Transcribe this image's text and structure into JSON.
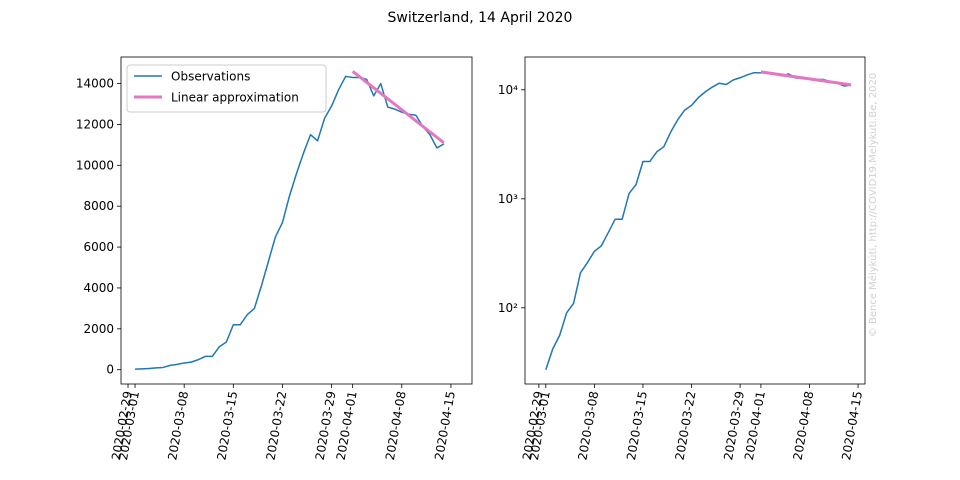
{
  "title": "Switzerland, 14 April 2020",
  "watermark": "© Bence Mélykúti, http://COVID19.Melykuti.Be, 2020",
  "chart_data": [
    {
      "type": "line",
      "log": false,
      "legend": "upper left",
      "x": [
        "2020-03-01",
        "2020-03-02",
        "2020-03-03",
        "2020-03-04",
        "2020-03-05",
        "2020-03-06",
        "2020-03-07",
        "2020-03-08",
        "2020-03-09",
        "2020-03-10",
        "2020-03-11",
        "2020-03-12",
        "2020-03-13",
        "2020-03-14",
        "2020-03-15",
        "2020-03-16",
        "2020-03-17",
        "2020-03-18",
        "2020-03-19",
        "2020-03-20",
        "2020-03-21",
        "2020-03-22",
        "2020-03-23",
        "2020-03-24",
        "2020-03-25",
        "2020-03-26",
        "2020-03-27",
        "2020-03-28",
        "2020-03-29",
        "2020-03-30",
        "2020-03-31",
        "2020-04-01",
        "2020-04-02",
        "2020-04-03",
        "2020-04-04",
        "2020-04-05",
        "2020-04-06",
        "2020-04-07",
        "2020-04-08",
        "2020-04-09",
        "2020-04-10",
        "2020-04-11",
        "2020-04-12",
        "2020-04-13",
        "2020-04-14"
      ],
      "series": [
        {
          "name": "Observations",
          "color": "#1f77b4",
          "values": [
            27,
            42,
            56,
            90,
            110,
            210,
            260,
            330,
            370,
            490,
            650,
            650,
            1120,
            1350,
            2200,
            2200,
            2700,
            3000,
            4100,
            5300,
            6500,
            7200,
            8500,
            9600,
            10600,
            11500,
            11200,
            12300,
            12900,
            13700,
            14350,
            14300,
            14300,
            14200,
            13400,
            14000,
            12850,
            12750,
            12600,
            12500,
            12450,
            11900,
            11500,
            10850,
            11050
          ]
        },
        {
          "name": "Linear approximation",
          "color": "#e377c2",
          "x": [
            "2020-04-01",
            "2020-04-14"
          ],
          "values": [
            14600,
            11100
          ]
        }
      ],
      "xlim": [
        "2020-02-28",
        "2020-04-18"
      ],
      "xticks": [
        "2020-02-29",
        "2020-03-01",
        "2020-03-08",
        "2020-03-15",
        "2020-03-22",
        "2020-03-29",
        "2020-04-01",
        "2020-04-08",
        "2020-04-15"
      ],
      "ylim": [
        -700,
        15300
      ],
      "yticks": [
        0,
        2000,
        4000,
        6000,
        8000,
        10000,
        12000,
        14000
      ]
    },
    {
      "type": "line",
      "log": true,
      "x": [
        "2020-03-01",
        "2020-03-02",
        "2020-03-03",
        "2020-03-04",
        "2020-03-05",
        "2020-03-06",
        "2020-03-07",
        "2020-03-08",
        "2020-03-09",
        "2020-03-10",
        "2020-03-11",
        "2020-03-12",
        "2020-03-13",
        "2020-03-14",
        "2020-03-15",
        "2020-03-16",
        "2020-03-17",
        "2020-03-18",
        "2020-03-19",
        "2020-03-20",
        "2020-03-21",
        "2020-03-22",
        "2020-03-23",
        "2020-03-24",
        "2020-03-25",
        "2020-03-26",
        "2020-03-27",
        "2020-03-28",
        "2020-03-29",
        "2020-03-30",
        "2020-03-31",
        "2020-04-01",
        "2020-04-02",
        "2020-04-03",
        "2020-04-04",
        "2020-04-05",
        "2020-04-06",
        "2020-04-07",
        "2020-04-08",
        "2020-04-09",
        "2020-04-10",
        "2020-04-11",
        "2020-04-12",
        "2020-04-13",
        "2020-04-14"
      ],
      "series": [
        {
          "name": "Observations",
          "color": "#1f77b4",
          "values": [
            27,
            42,
            56,
            90,
            110,
            210,
            260,
            330,
            370,
            490,
            650,
            650,
            1120,
            1350,
            2200,
            2200,
            2700,
            3000,
            4100,
            5300,
            6500,
            7200,
            8500,
            9600,
            10600,
            11500,
            11200,
            12300,
            12900,
            13700,
            14350,
            14300,
            14300,
            14200,
            13400,
            14000,
            12850,
            12750,
            12600,
            12500,
            12450,
            11900,
            11500,
            10850,
            11050
          ]
        },
        {
          "name": "Linear approximation",
          "color": "#e377c2",
          "x": [
            "2020-04-01",
            "2020-04-14"
          ],
          "values": [
            14600,
            11100
          ]
        }
      ],
      "xlim": [
        "2020-02-27",
        "2020-04-16"
      ],
      "xticks": [
        "2020-02-29",
        "2020-03-01",
        "2020-03-08",
        "2020-03-15",
        "2020-03-22",
        "2020-03-29",
        "2020-04-01",
        "2020-04-08",
        "2020-04-15"
      ],
      "ylim": [
        20,
        20000
      ],
      "yticks": [
        {
          "value": 100,
          "label": "10²"
        },
        {
          "value": 1000,
          "label": "10³"
        },
        {
          "value": 10000,
          "label": "10⁴"
        }
      ]
    }
  ]
}
